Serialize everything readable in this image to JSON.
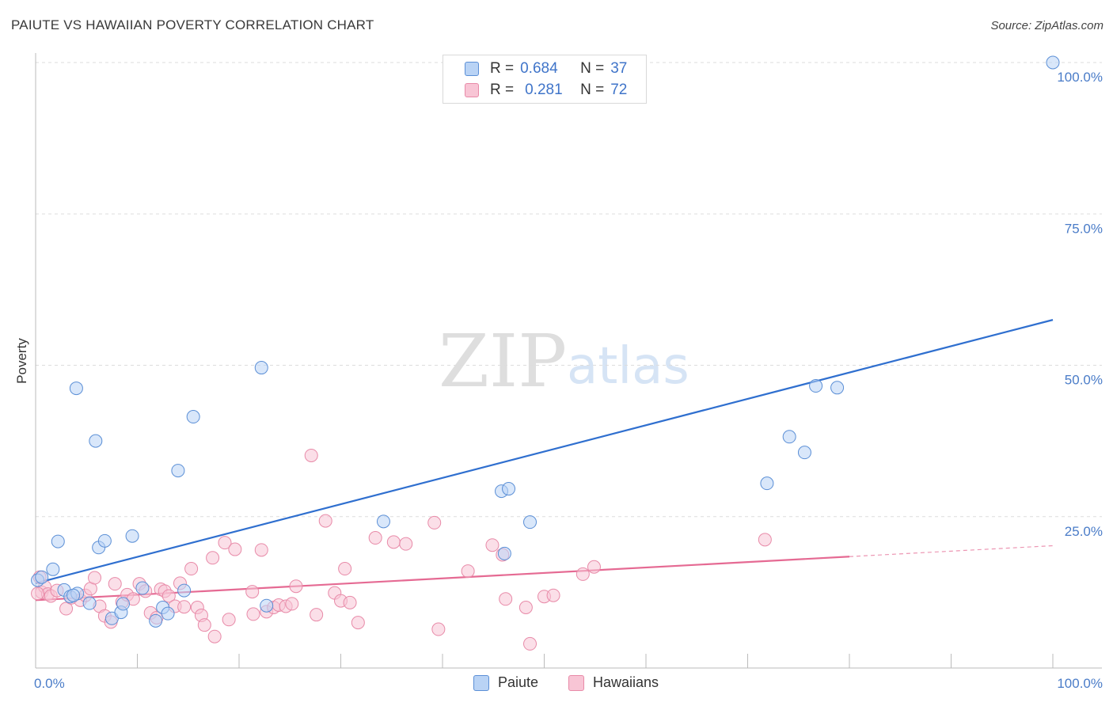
{
  "title": "PAIUTE VS HAWAIIAN POVERTY CORRELATION CHART",
  "source": "Source: ZipAtlas.com",
  "watermark": {
    "zip": "ZIP",
    "atlas": "atlas"
  },
  "colors": {
    "paiute_fill": "#b9d3f5",
    "paiute_stroke": "#5b8fd6",
    "paiute_line": "#2f6fcf",
    "hawaiian_fill": "#f8c5d5",
    "hawaiian_stroke": "#e88aa8",
    "hawaiian_line": "#e56a93",
    "tick_label": "#4a7cc8",
    "grid": "#dddddd"
  },
  "legend": {
    "rows": [
      {
        "r_label": "R =",
        "r_value": "0.684",
        "n_label": "N =",
        "n_value": "37"
      },
      {
        "r_label": "R =",
        "r_value": "0.281",
        "n_label": "N =",
        "n_value": "72"
      }
    ]
  },
  "bottom_legend": {
    "paiute": "Paiute",
    "hawaiians": "Hawaiians"
  },
  "chart_data": {
    "type": "scatter",
    "title": "PAIUTE VS HAWAIIAN POVERTY CORRELATION CHART",
    "xlabel": "",
    "ylabel": "Poverty",
    "xlim": [
      0,
      100
    ],
    "ylim": [
      0,
      100
    ],
    "x_tick_labels": [
      {
        "value": 0,
        "label": "0.0%"
      },
      {
        "value": 100,
        "label": "100.0%"
      }
    ],
    "x_minor_ticks": [
      0,
      10,
      20,
      30,
      40,
      50,
      60,
      70,
      80,
      90,
      100
    ],
    "y_ticks": [
      {
        "value": 25,
        "label": "25.0%"
      },
      {
        "value": 50,
        "label": "50.0%"
      },
      {
        "value": 75,
        "label": "75.0%"
      },
      {
        "value": 100,
        "label": "100.0%"
      }
    ],
    "grid": true,
    "series": [
      {
        "name": "Paiute",
        "r": 0.684,
        "n": 37,
        "trend": {
          "x0": 0,
          "y0": 14.0,
          "x1": 100,
          "y1": 57.5,
          "solid_until": 100
        },
        "points": [
          [
            0.2,
            14.5
          ],
          [
            1.7,
            16.3
          ],
          [
            2.2,
            20.9
          ],
          [
            2.8,
            12.9
          ],
          [
            3.4,
            11.8
          ],
          [
            4.1,
            12.3
          ],
          [
            4.0,
            46.2
          ],
          [
            5.3,
            10.7
          ],
          [
            5.9,
            37.5
          ],
          [
            6.2,
            19.9
          ],
          [
            6.8,
            21.0
          ],
          [
            7.5,
            8.2
          ],
          [
            8.4,
            9.2
          ],
          [
            8.6,
            10.6
          ],
          [
            9.5,
            21.8
          ],
          [
            10.5,
            13.2
          ],
          [
            11.8,
            7.8
          ],
          [
            12.5,
            10.0
          ],
          [
            13.0,
            9.0
          ],
          [
            14.0,
            32.6
          ],
          [
            14.6,
            12.8
          ],
          [
            15.5,
            41.5
          ],
          [
            22.2,
            49.6
          ],
          [
            22.7,
            10.3
          ],
          [
            34.2,
            24.2
          ],
          [
            46.1,
            18.9
          ],
          [
            45.8,
            29.2
          ],
          [
            46.5,
            29.6
          ],
          [
            48.6,
            24.1
          ],
          [
            71.9,
            30.5
          ],
          [
            74.1,
            38.2
          ],
          [
            75.6,
            35.6
          ],
          [
            76.7,
            46.6
          ],
          [
            78.8,
            46.3
          ],
          [
            100.0,
            100.0
          ],
          [
            0.6,
            15.0
          ],
          [
            3.7,
            12.0
          ]
        ]
      },
      {
        "name": "Hawaiians",
        "r": 0.281,
        "n": 72,
        "trend": {
          "x0": 0,
          "y0": 11.2,
          "x1": 100,
          "y1": 20.2,
          "solid_until": 80
        },
        "points": [
          [
            0.4,
            15.0
          ],
          [
            0.6,
            12.5
          ],
          [
            0.9,
            13.4
          ],
          [
            1.2,
            12.2
          ],
          [
            1.5,
            11.9
          ],
          [
            2.1,
            12.8
          ],
          [
            3.0,
            9.8
          ],
          [
            3.5,
            11.6
          ],
          [
            4.4,
            11.2
          ],
          [
            4.9,
            12.0
          ],
          [
            5.4,
            13.1
          ],
          [
            5.8,
            14.9
          ],
          [
            6.3,
            10.2
          ],
          [
            6.8,
            8.6
          ],
          [
            7.4,
            7.6
          ],
          [
            7.8,
            13.9
          ],
          [
            8.5,
            10.9
          ],
          [
            9.0,
            12.1
          ],
          [
            9.6,
            11.4
          ],
          [
            10.2,
            13.9
          ],
          [
            10.8,
            12.7
          ],
          [
            11.3,
            9.1
          ],
          [
            11.9,
            8.3
          ],
          [
            12.3,
            13.0
          ],
          [
            12.7,
            12.7
          ],
          [
            13.1,
            11.9
          ],
          [
            13.7,
            10.2
          ],
          [
            14.2,
            14.0
          ],
          [
            14.6,
            10.1
          ],
          [
            15.3,
            16.4
          ],
          [
            15.9,
            10.0
          ],
          [
            16.3,
            8.7
          ],
          [
            16.6,
            7.1
          ],
          [
            17.4,
            18.2
          ],
          [
            17.6,
            5.2
          ],
          [
            18.6,
            20.7
          ],
          [
            19.0,
            8.0
          ],
          [
            19.6,
            19.6
          ],
          [
            21.3,
            12.6
          ],
          [
            21.4,
            8.9
          ],
          [
            22.2,
            19.5
          ],
          [
            22.7,
            9.3
          ],
          [
            23.4,
            10.0
          ],
          [
            23.9,
            10.4
          ],
          [
            24.6,
            10.2
          ],
          [
            25.2,
            10.6
          ],
          [
            25.6,
            13.5
          ],
          [
            27.1,
            35.1
          ],
          [
            27.6,
            8.8
          ],
          [
            28.5,
            24.3
          ],
          [
            29.4,
            12.4
          ],
          [
            30.0,
            11.1
          ],
          [
            30.4,
            16.4
          ],
          [
            30.9,
            10.8
          ],
          [
            31.7,
            7.5
          ],
          [
            33.4,
            21.5
          ],
          [
            35.2,
            20.8
          ],
          [
            36.4,
            20.5
          ],
          [
            39.2,
            24.0
          ],
          [
            39.6,
            6.4
          ],
          [
            42.5,
            16.0
          ],
          [
            44.9,
            20.3
          ],
          [
            45.9,
            18.7
          ],
          [
            46.2,
            11.4
          ],
          [
            48.2,
            10.0
          ],
          [
            48.6,
            4.0
          ],
          [
            50.0,
            11.8
          ],
          [
            50.9,
            12.0
          ],
          [
            53.8,
            15.5
          ],
          [
            54.9,
            16.7
          ],
          [
            71.7,
            21.2
          ],
          [
            0.2,
            12.3
          ]
        ]
      }
    ]
  }
}
